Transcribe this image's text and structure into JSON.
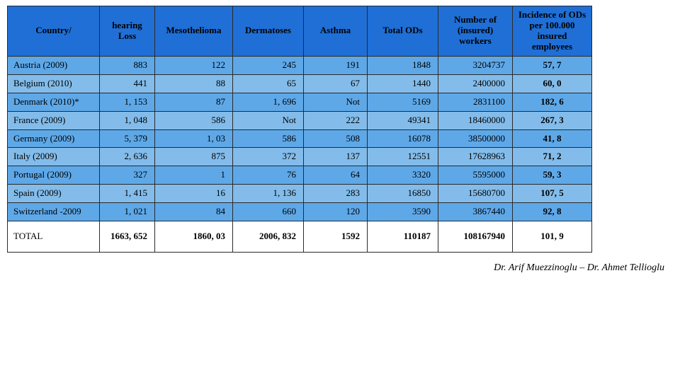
{
  "table": {
    "header_bg": "#1f6fd6",
    "row_colors": [
      "#5ea8e8",
      "#83bcea"
    ],
    "total_row_bg": "#ffffff",
    "border_color": "#2a2a2a",
    "text_color": "#000000",
    "columns": [
      "Country/",
      "hearing Loss",
      "Mesothelioma",
      "Dermatoses",
      "Asthma",
      "Total ODs",
      "Number of (insured) workers",
      "Incidence of ODs per 100.000 insured employees"
    ],
    "rows": [
      {
        "country": "Austria (2009)",
        "hearing": "883",
        "meso": "122",
        "derm": "245",
        "asthma": "191",
        "total": "1848",
        "workers": "3204737",
        "incidence": "57, 7"
      },
      {
        "country": "Belgium (2010)",
        "hearing": "441",
        "meso": "88",
        "derm": "65",
        "asthma": "67",
        "total": "1440",
        "workers": "2400000",
        "incidence": "60, 0"
      },
      {
        "country": "Denmark (2010)*",
        "hearing": "1, 153",
        "meso": "87",
        "derm": "1, 696",
        "asthma": "Not",
        "total": "5169",
        "workers": "2831100",
        "incidence": "182, 6"
      },
      {
        "country": "France (2009)",
        "hearing": "1, 048",
        "meso": "586",
        "derm": "Not",
        "asthma": "222",
        "total": "49341",
        "workers": "18460000",
        "incidence": "267, 3"
      },
      {
        "country": "Germany (2009)",
        "hearing": "5, 379",
        "meso": "1, 03",
        "derm": "586",
        "asthma": "508",
        "total": "16078",
        "workers": "38500000",
        "incidence": "41, 8"
      },
      {
        "country": "Italy (2009)",
        "hearing": "2, 636",
        "meso": "875",
        "derm": "372",
        "asthma": "137",
        "total": "12551",
        "workers": "17628963",
        "incidence": "71, 2"
      },
      {
        "country": "Portugal (2009)",
        "hearing": "327",
        "meso": "1",
        "derm": "76",
        "asthma": "64",
        "total": "3320",
        "workers": "5595000",
        "incidence": "59, 3"
      },
      {
        "country": "Spain (2009)",
        "hearing": "1, 415",
        "meso": "16",
        "derm": "1, 136",
        "asthma": "283",
        "total": "16850",
        "workers": "15680700",
        "incidence": "107, 5"
      },
      {
        "country": "Switzerland -2009",
        "hearing": "1, 021",
        "meso": "84",
        "derm": "660",
        "asthma": "120",
        "total": "3590",
        "workers": "3867440",
        "incidence": "92, 8"
      }
    ],
    "total_row": {
      "country": "TOTAL",
      "hearing": "1663, 652",
      "meso": "1860, 03",
      "derm": "2006, 832",
      "asthma": "1592",
      "total": "110187",
      "workers": "108167940",
      "incidence": "101, 9"
    }
  },
  "footer_text": "Dr. Arif Muezzinoglu – Dr. Ahmet Tellioglu"
}
